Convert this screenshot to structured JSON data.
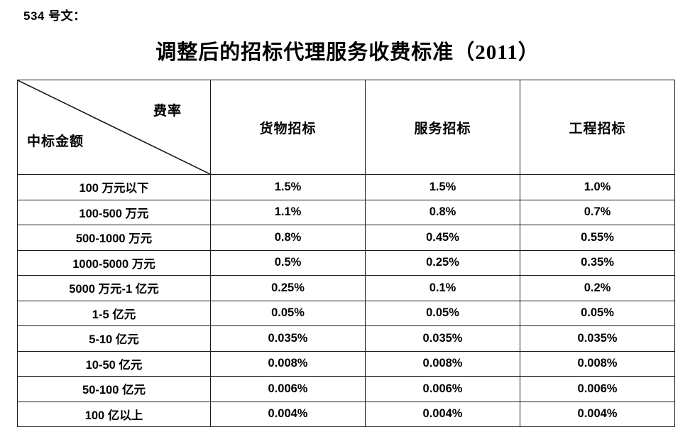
{
  "page": {
    "doc_label": "534 号文：",
    "title": "调整后的招标代理服务收费标准（2011）"
  },
  "table": {
    "corner": {
      "top_right": "费率",
      "bottom_left": "中标金额"
    },
    "columns": [
      "货物招标",
      "服务招标",
      "工程招标"
    ],
    "rows": [
      {
        "label": "100 万元以下",
        "values": [
          "1.5%",
          "1.5%",
          "1.0%"
        ]
      },
      {
        "label": "100-500 万元",
        "values": [
          "1.1%",
          "0.8%",
          "0.7%"
        ]
      },
      {
        "label": "500-1000 万元",
        "values": [
          "0.8%",
          "0.45%",
          "0.55%"
        ]
      },
      {
        "label": "1000-5000 万元",
        "values": [
          "0.5%",
          "0.25%",
          "0.35%"
        ]
      },
      {
        "label": "5000 万元-1 亿元",
        "values": [
          "0.25%",
          "0.1%",
          "0.2%"
        ]
      },
      {
        "label": "1-5 亿元",
        "values": [
          "0.05%",
          "0.05%",
          "0.05%"
        ]
      },
      {
        "label": "5-10 亿元",
        "values": [
          "0.035%",
          "0.035%",
          "0.035%"
        ]
      },
      {
        "label": "10-50 亿元",
        "values": [
          "0.008%",
          "0.008%",
          "0.008%"
        ]
      },
      {
        "label": "50-100 亿元",
        "values": [
          "0.006%",
          "0.006%",
          "0.006%"
        ]
      },
      {
        "label": "100 亿以上",
        "values": [
          "0.004%",
          "0.004%",
          "0.004%"
        ]
      }
    ]
  },
  "colors": {
    "text": "#000000",
    "border": "#1a1a1a",
    "background": "#ffffff"
  }
}
